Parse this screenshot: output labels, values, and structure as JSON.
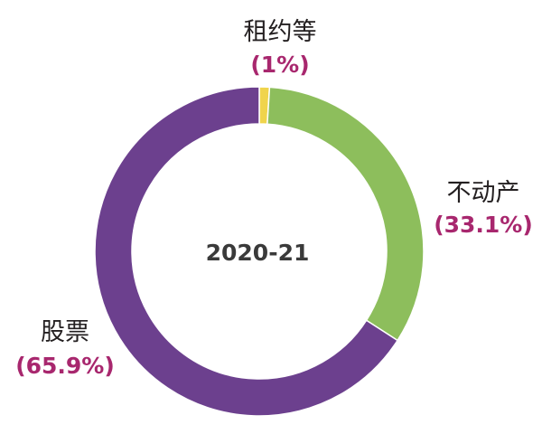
{
  "chart_data": {
    "type": "pie",
    "center_label": "2020-21",
    "categories": [
      "租约等",
      "不动产",
      "股票"
    ],
    "values": [
      1,
      33.1,
      65.9
    ],
    "value_labels": [
      "(1%)",
      "(33.1%)",
      "(65.9%)"
    ],
    "colors": [
      "#f0d44c",
      "#8dbe5c",
      "#6c408e"
    ],
    "label_color": "#a8276e"
  }
}
